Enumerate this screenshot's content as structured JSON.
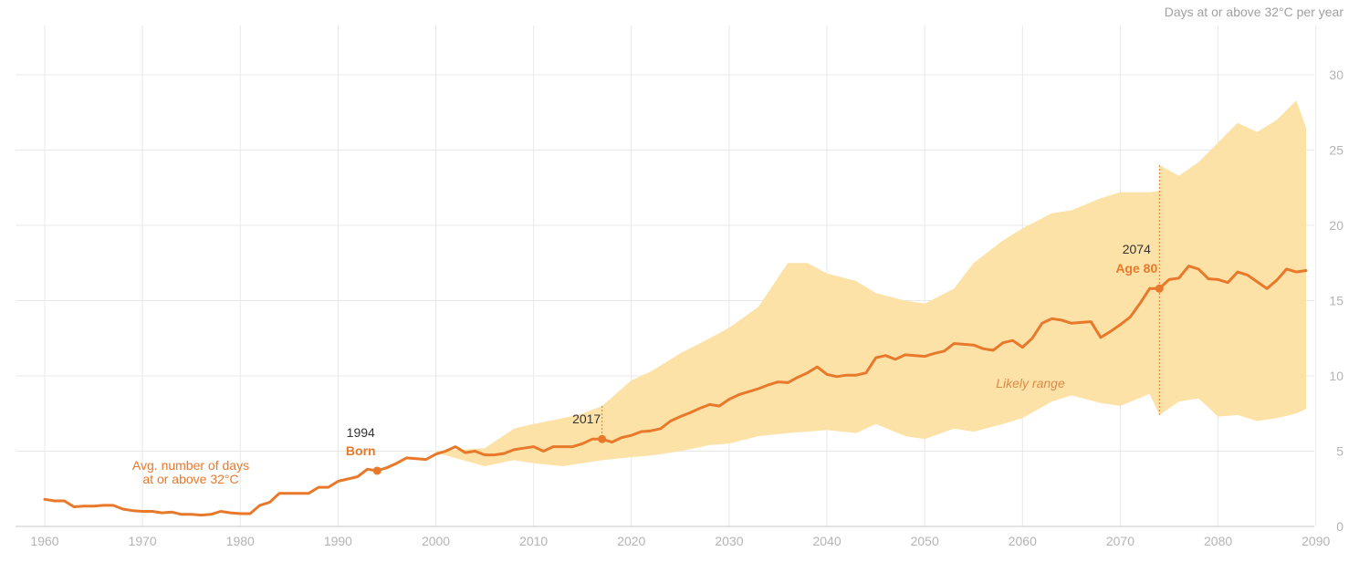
{
  "chart_data": {
    "type": "line",
    "title": "",
    "ylabel": "Days at or above 32°C per year",
    "xlabel": "",
    "xlim": [
      1958,
      2090
    ],
    "ylim": [
      0,
      30
    ],
    "x_ticks": [
      1960,
      1970,
      1980,
      1990,
      2000,
      2010,
      2020,
      2030,
      2040,
      2050,
      2060,
      2070,
      2080,
      2090
    ],
    "y_ticks": [
      0,
      5,
      10,
      15,
      20,
      25,
      30
    ],
    "grid": true,
    "colors": {
      "line": "#e8792b",
      "band": "#fde2a7",
      "grid": "#e8e8e8"
    },
    "series": [
      {
        "name": "Avg. number of days at or above 32°C",
        "x": [
          1960,
          1961,
          1962,
          1963,
          1964,
          1965,
          1966,
          1967,
          1968,
          1969,
          1970,
          1971,
          1972,
          1973,
          1974,
          1975,
          1976,
          1977,
          1978,
          1979,
          1980,
          1981,
          1982,
          1983,
          1984,
          1985,
          1986,
          1987,
          1988,
          1989,
          1990,
          1991,
          1992,
          1993,
          1994,
          1995,
          1996,
          1997,
          1998,
          1999,
          2000,
          2001,
          2002,
          2003,
          2004,
          2005,
          2006,
          2007,
          2008,
          2009,
          2010,
          2011,
          2012,
          2013,
          2014,
          2015,
          2016,
          2017,
          2018,
          2019,
          2020,
          2021,
          2022,
          2023,
          2024,
          2025,
          2026,
          2027,
          2028,
          2029,
          2030,
          2031,
          2032,
          2033,
          2034,
          2035,
          2036,
          2037,
          2038,
          2039,
          2040,
          2041,
          2042,
          2043,
          2044,
          2045,
          2046,
          2047,
          2048,
          2049,
          2050,
          2051,
          2052,
          2053,
          2054,
          2055,
          2056,
          2057,
          2058,
          2059,
          2060,
          2061,
          2062,
          2063,
          2064,
          2065,
          2066,
          2067,
          2068,
          2069,
          2070,
          2071,
          2072,
          2073,
          2074,
          2075,
          2076,
          2077,
          2078,
          2079,
          2080,
          2081,
          2082,
          2083,
          2084,
          2085,
          2086,
          2087,
          2088,
          2089
        ],
        "values": [
          1.8,
          1.7,
          1.7,
          1.3,
          1.35,
          1.35,
          1.4,
          1.4,
          1.15,
          1.05,
          1.0,
          1.0,
          0.9,
          0.95,
          0.8,
          0.8,
          0.75,
          0.8,
          1.0,
          0.9,
          0.85,
          0.85,
          1.4,
          1.6,
          2.2,
          2.2,
          2.2,
          2.2,
          2.6,
          2.6,
          3.0,
          3.15,
          3.3,
          3.8,
          3.7,
          3.9,
          4.2,
          4.55,
          4.5,
          4.45,
          4.8,
          5.0,
          5.3,
          4.9,
          5.0,
          4.75,
          4.75,
          4.85,
          5.1,
          5.2,
          5.3,
          5.0,
          5.3,
          5.3,
          5.3,
          5.5,
          5.8,
          5.8,
          5.6,
          5.9,
          6.05,
          6.3,
          6.35,
          6.5,
          7.0,
          7.3,
          7.55,
          7.85,
          8.1,
          8.0,
          8.45,
          8.75,
          8.95,
          9.15,
          9.4,
          9.6,
          9.55,
          9.9,
          10.2,
          10.6,
          10.1,
          9.95,
          10.05,
          10.05,
          10.2,
          11.2,
          11.35,
          11.1,
          11.4,
          11.35,
          11.3,
          11.5,
          11.65,
          12.15,
          12.1,
          12.05,
          11.8,
          11.7,
          12.2,
          12.35,
          11.9,
          12.5,
          13.5,
          13.8,
          13.7,
          13.5,
          13.55,
          13.6,
          12.55,
          12.95,
          13.4,
          13.9,
          14.8,
          15.8,
          15.8,
          16.4,
          16.5,
          17.3,
          17.1,
          16.45,
          16.4,
          16.2,
          16.9,
          16.7,
          16.25,
          15.8,
          16.35,
          17.1,
          16.9,
          17.0
        ]
      }
    ],
    "band": {
      "name": "Likely range",
      "x": [
        2000,
        2005,
        2008,
        2010,
        2013,
        2015,
        2017,
        2020,
        2022,
        2025,
        2028,
        2030,
        2033,
        2036,
        2038,
        2040,
        2043,
        2045,
        2048,
        2050,
        2053,
        2055,
        2058,
        2060,
        2063,
        2065,
        2068,
        2070,
        2073,
        2074,
        2074.01,
        2076,
        2078,
        2080,
        2082,
        2084,
        2086,
        2088,
        2089
      ],
      "low": [
        4.9,
        4.0,
        4.4,
        4.2,
        4.0,
        4.2,
        4.4,
        4.6,
        4.7,
        5.0,
        5.4,
        5.5,
        6.0,
        6.2,
        6.3,
        6.4,
        6.2,
        6.8,
        6.0,
        5.8,
        6.5,
        6.3,
        6.8,
        7.2,
        8.3,
        8.7,
        8.2,
        8.0,
        8.8,
        7.4,
        7.4,
        8.3,
        8.5,
        7.3,
        7.4,
        7.0,
        7.2,
        7.5,
        7.8
      ],
      "high": [
        5.0,
        5.2,
        6.5,
        6.8,
        7.2,
        7.5,
        8.0,
        9.7,
        10.3,
        11.5,
        12.5,
        13.2,
        14.6,
        17.5,
        17.5,
        16.8,
        16.3,
        15.5,
        15.0,
        14.8,
        15.8,
        17.5,
        19.0,
        19.8,
        20.8,
        21.0,
        21.8,
        22.2,
        22.2,
        22.3,
        24.0,
        23.3,
        24.2,
        25.5,
        26.8,
        26.2,
        27.0,
        28.3,
        26.5
      ]
    },
    "annotations": [
      {
        "year_label": "1994",
        "event_label": "Born",
        "x": 1994,
        "y": 3.7,
        "dotted_guide": false
      },
      {
        "year_label": "2017",
        "event_label": "",
        "x": 2017,
        "y": 5.8,
        "dotted_guide": true,
        "guide_top": 8.0
      },
      {
        "year_label": "2074",
        "event_label": "Age 80",
        "x": 2074,
        "y": 15.8,
        "dotted_guide": true,
        "guide_top": 24.0,
        "guide_bottom": 7.4
      }
    ],
    "series_label_lines": [
      "Avg. number of days",
      "at or above 32°C"
    ],
    "band_label": "Likely range"
  }
}
